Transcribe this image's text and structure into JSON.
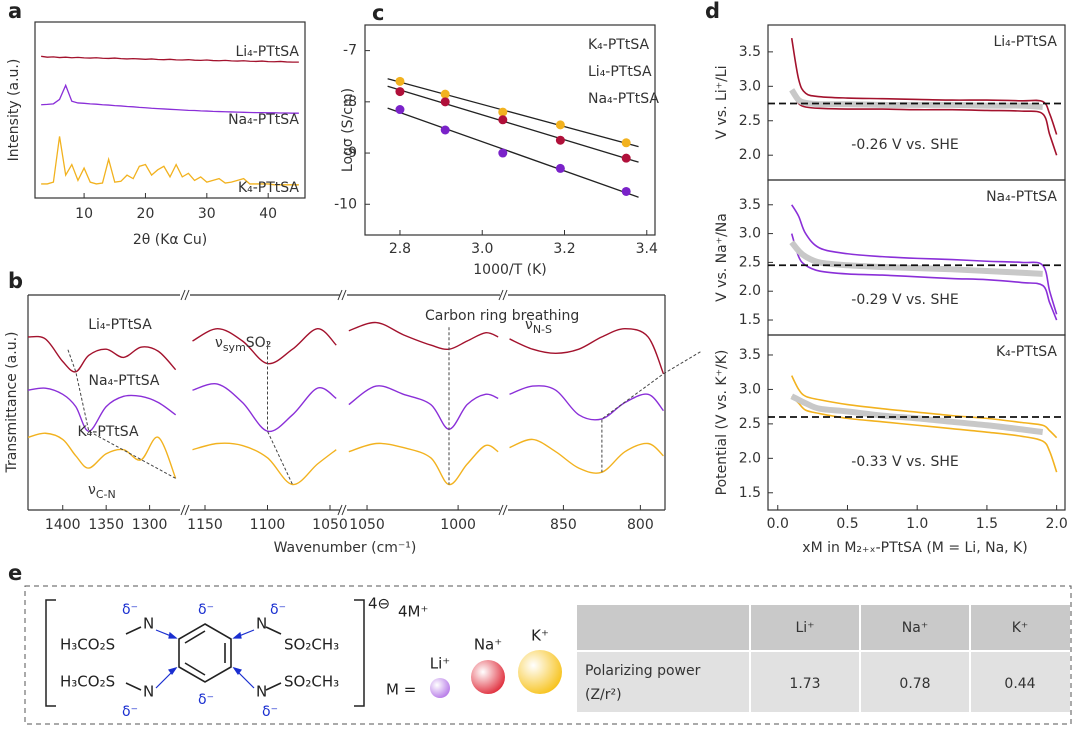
{
  "chart_data": [
    {
      "label": "a",
      "type": "line",
      "ylabel": "Intensity (a.u.)",
      "xlabel": "2θ (Kα Cu)",
      "xlim": [
        2,
        46
      ],
      "xticks": [
        10,
        20,
        30,
        40
      ],
      "ylim": [
        0,
        10
      ],
      "x": [
        3,
        4,
        5,
        6,
        7,
        8,
        9,
        10,
        11,
        12,
        13,
        14,
        15,
        16,
        17,
        18,
        19,
        20,
        21,
        22,
        23,
        24,
        25,
        26,
        27,
        28,
        29,
        30,
        31,
        32,
        33,
        34,
        35,
        36,
        37,
        38,
        39,
        40,
        41,
        42,
        43,
        44,
        45
      ],
      "series": [
        {
          "name": "Li₄-PTtSA",
          "color": "#a3122d",
          "values": [
            8.05,
            8.0,
            8.02,
            7.98,
            8.0,
            7.97,
            7.99,
            7.96,
            7.95,
            7.97,
            7.94,
            7.93,
            7.95,
            7.92,
            7.9,
            7.92,
            7.9,
            7.88,
            7.9,
            7.87,
            7.86,
            7.88,
            7.85,
            7.84,
            7.86,
            7.83,
            7.82,
            7.84,
            7.81,
            7.8,
            7.82,
            7.79,
            7.78,
            7.8,
            7.77,
            7.76,
            7.78,
            7.75,
            7.74,
            7.76,
            7.73,
            7.72,
            7.72
          ]
        },
        {
          "name": "Na₄-PTtSA",
          "color": "#8a2fd8",
          "values": [
            5.3,
            5.32,
            5.35,
            5.6,
            6.4,
            5.5,
            5.4,
            5.38,
            5.35,
            5.33,
            5.3,
            5.28,
            5.25,
            5.23,
            5.2,
            5.18,
            5.15,
            5.13,
            5.1,
            5.08,
            5.06,
            5.04,
            5.02,
            5.0,
            4.98,
            4.97,
            4.95,
            4.94,
            4.92,
            4.91,
            4.9,
            4.89,
            4.88,
            4.87,
            4.86,
            4.85,
            4.85,
            4.84,
            4.84,
            4.83,
            4.83,
            4.82,
            4.82
          ]
        },
        {
          "name": "K₄-PTtSA",
          "color": "#f2b21f",
          "values": [
            0.8,
            0.8,
            0.9,
            3.5,
            1.3,
            1.9,
            1.0,
            1.7,
            0.9,
            0.8,
            0.85,
            2.2,
            0.9,
            0.95,
            1.3,
            1.1,
            1.8,
            1.9,
            1.3,
            1.6,
            1.8,
            1.2,
            1.9,
            1.2,
            1.4,
            1.0,
            1.2,
            0.9,
            1.0,
            1.1,
            0.85,
            0.9,
            1.0,
            1.1,
            0.8,
            0.8,
            0.8,
            0.8,
            0.75,
            0.75,
            0.75,
            0.75,
            0.75
          ]
        }
      ]
    },
    {
      "label": "b",
      "type": "broken-line",
      "ylabel": "Transmittance (a.u.)",
      "xlabel": "Wavenumber (cm⁻¹)",
      "ylim": [
        0,
        10
      ],
      "series_labels": [
        {
          "name": "Li₄-PTtSA",
          "color": "#a3122d"
        },
        {
          "name": "Na₄-PTtSA",
          "color": "#8a2fd8"
        },
        {
          "name": "K₄-PTtSA",
          "color": "#f2b21f"
        }
      ],
      "segments": [
        {
          "xlim": [
            1440,
            1265
          ],
          "xticks": [
            1400,
            1350,
            1300
          ],
          "x": [
            1440,
            1420,
            1400,
            1385,
            1370,
            1350,
            1330,
            1310,
            1290,
            1270
          ],
          "annotation": {
            "symbol": "ν",
            "sub": "C-N"
          },
          "series": [
            {
              "values": [
                8.2,
                8.1,
                7.0,
                6.5,
                7.3,
                7.6,
                7.2,
                7.7,
                7.5,
                6.6
              ]
            },
            {
              "values": [
                5.6,
                5.7,
                5.4,
                4.8,
                3.6,
                4.8,
                5.3,
                5.3,
                5.0,
                4.4
              ]
            },
            {
              "values": [
                3.3,
                3.5,
                3.2,
                2.4,
                1.8,
                2.5,
                2.7,
                2.2,
                3.3,
                1.3
              ]
            }
          ]
        },
        {
          "xlim": [
            1162,
            1042
          ],
          "xticks": [
            1150,
            1100,
            1050
          ],
          "x": [
            1160,
            1140,
            1120,
            1100,
            1080,
            1060,
            1045
          ],
          "annotation": {
            "symbol": "ν",
            "sub": "sym",
            "tail": "SO₂"
          },
          "series": [
            {
              "values": [
                8.0,
                8.6,
                8.0,
                6.9,
                7.6,
                8.6,
                7.8
              ]
            },
            {
              "values": [
                5.6,
                5.9,
                5.0,
                3.6,
                4.4,
                5.7,
                5.2
              ]
            },
            {
              "values": [
                2.7,
                3.0,
                2.9,
                2.3,
                1.0,
                2.0,
                2.7
              ]
            }
          ]
        },
        {
          "xlim": [
            1061,
            977
          ],
          "xticks": [
            1050,
            1000
          ],
          "x": [
            1060,
            1045,
            1030,
            1015,
            1005,
            995,
            985,
            978
          ],
          "annotation": {
            "symbol": "Carbon ring breathing"
          },
          "series": [
            {
              "values": [
                8.5,
                8.9,
                8.3,
                7.8,
                7.6,
                8.0,
                8.4,
                8.2
              ]
            },
            {
              "values": [
                4.9,
                5.8,
                5.4,
                4.9,
                3.7,
                4.9,
                5.4,
                5.2
              ]
            },
            {
              "values": [
                2.6,
                3.0,
                2.8,
                2.3,
                1.0,
                2.0,
                2.9,
                2.6
              ]
            }
          ]
        },
        {
          "xlim": [
            886,
            784
          ],
          "xticks": [
            850,
            800
          ],
          "x": [
            885,
            870,
            855,
            840,
            825,
            810,
            795,
            785
          ],
          "annotation": {
            "symbol": "ν",
            "sub": "N-S"
          },
          "series": [
            {
              "values": [
                8.1,
                7.6,
                7.4,
                7.6,
                8.2,
                8.6,
                8.2,
                6.4
              ]
            },
            {
              "values": [
                5.4,
                5.8,
                5.6,
                4.4,
                4.2,
                5.0,
                5.4,
                4.6
              ]
            },
            {
              "values": [
                2.8,
                3.2,
                2.6,
                1.8,
                1.6,
                2.6,
                3.0,
                2.4
              ]
            }
          ]
        }
      ]
    },
    {
      "label": "c",
      "type": "scatter",
      "xlabel": "1000/T (K)",
      "ylabel": "Logσ (S/cm)",
      "fit": true,
      "xlim": [
        2.715,
        3.42
      ],
      "ylim": [
        -10.6,
        -6.5
      ],
      "xticks": [
        2.8,
        {
          "value": 3,
          "label": "3.0"
        },
        3.2,
        3.4
      ],
      "yticks": [
        -10,
        -9,
        -8,
        -7
      ],
      "x": [
        2.8,
        2.91,
        3.05,
        3.19,
        3.35
      ],
      "series": [
        {
          "name": "K₄-PTtSA",
          "color": "#f2b21f",
          "values": [
            -7.6,
            -7.85,
            -8.2,
            -8.45,
            -8.8
          ]
        },
        {
          "name": "Li₄-PTtSA",
          "color": "#b0103a",
          "values": [
            -7.8,
            -8.0,
            -8.35,
            -8.75,
            -9.1
          ]
        },
        {
          "name": "Na₄-PTtSA",
          "color": "#7a22c9",
          "values": [
            -8.15,
            -8.55,
            -9.0,
            -9.3,
            -9.75
          ]
        }
      ]
    },
    {
      "label": "d",
      "type": "line",
      "xlabel": "xM in M₂₊ₓ-PTtSA (M = Li, Na, K)",
      "xlim": [
        -0.07,
        2.06
      ],
      "xticks": [
        {
          "value": 0,
          "label": "0.0"
        },
        0.5,
        {
          "value": 1,
          "label": "1.0"
        },
        1.5,
        {
          "value": 2,
          "label": "2.0"
        }
      ],
      "x": [
        0.1,
        0.15,
        0.2,
        0.3,
        0.5,
        0.75,
        1.0,
        1.25,
        1.5,
        1.75,
        1.9,
        1.95,
        2.0
      ],
      "panels": [
        {
          "label": "Li₄-PTtSA",
          "ylabel": "V vs. Li⁺/Li",
          "annotation": "-0.26 V vs. SHE",
          "reference": 2.75,
          "ylim": [
            1.64,
            3.89
          ],
          "yticks": [
            {
              "value": 2,
              "label": "2.0"
            },
            2.5,
            {
              "value": 3,
              "label": "3.0"
            },
            3.5
          ],
          "series": [
            {
              "color": "#a3122d",
              "values": [
                3.7,
                3.1,
                2.9,
                2.85,
                2.83,
                2.82,
                2.81,
                2.8,
                2.8,
                2.79,
                2.78,
                2.6,
                2.3
              ]
            },
            {
              "color": "#a3122d",
              "values": [
                2.9,
                2.75,
                2.7,
                2.68,
                2.67,
                2.67,
                2.66,
                2.66,
                2.65,
                2.64,
                2.6,
                2.3,
                2.0
              ]
            },
            {
              "color": "#c8c8c8",
              "values": [
                2.95,
                2.8,
                2.76,
                2.74,
                2.74,
                2.73,
                2.73,
                2.73,
                2.72,
                2.72,
                2.7,
                null,
                null
              ]
            }
          ]
        },
        {
          "label": "Na₄-PTtSA",
          "ylabel": "V vs. Na⁺/Na",
          "annotation": "-0.29 V vs. SHE",
          "reference": 2.45,
          "ylim": [
            1.24,
            3.93
          ],
          "yticks": [
            1.5,
            {
              "value": 2,
              "label": "2.0"
            },
            2.5,
            {
              "value": 3,
              "label": "3.0"
            },
            3.5
          ],
          "series": [
            {
              "color": "#8a2fd8",
              "values": [
                3.5,
                3.3,
                3.0,
                2.75,
                2.65,
                2.6,
                2.57,
                2.55,
                2.52,
                2.5,
                2.45,
                2.0,
                1.6
              ]
            },
            {
              "color": "#8a2fd8",
              "values": [
                3.0,
                2.6,
                2.45,
                2.35,
                2.3,
                2.28,
                2.25,
                2.22,
                2.2,
                2.15,
                2.1,
                1.8,
                1.5
              ]
            },
            {
              "color": "#c8c8c8",
              "values": [
                2.85,
                2.7,
                2.6,
                2.5,
                2.45,
                2.42,
                2.4,
                2.38,
                2.35,
                2.32,
                2.3,
                null,
                null
              ]
            }
          ]
        },
        {
          "label": "K₄-PTtSA",
          "ylabel": "Potential (V vs. K⁺/K)",
          "annotation": "-0.33 V vs. SHE",
          "reference": 2.6,
          "ylim": [
            1.25,
            3.79
          ],
          "yticks": [
            1.5,
            {
              "value": 2,
              "label": "2.0"
            },
            2.5,
            {
              "value": 3,
              "label": "3.0"
            },
            3.5
          ],
          "series": [
            {
              "color": "#f2b21f",
              "values": [
                3.2,
                3.0,
                2.9,
                2.85,
                2.78,
                2.72,
                2.67,
                2.62,
                2.58,
                2.52,
                2.48,
                2.4,
                2.3
              ]
            },
            {
              "color": "#f2b21f",
              "values": [
                2.9,
                2.8,
                2.7,
                2.65,
                2.58,
                2.53,
                2.48,
                2.43,
                2.38,
                2.32,
                2.25,
                2.1,
                1.8
              ]
            },
            {
              "color": "#c8c8c8",
              "values": [
                2.9,
                2.85,
                2.8,
                2.72,
                2.68,
                2.62,
                2.58,
                2.53,
                2.48,
                2.42,
                2.38,
                null,
                null
              ]
            }
          ]
        }
      ]
    }
  ],
  "figure_e": {
    "label": "e",
    "structure": {
      "left_group": [
        "H₃CO₂S",
        "H₃CO₂S"
      ],
      "right_group": [
        "SO₂CH₃",
        "SO₂CH₃"
      ],
      "N": [
        "N",
        "N",
        "N",
        "N"
      ],
      "delta": [
        "δ⁻",
        "δ⁻",
        "δ⁻",
        "δ⁻",
        "δ⁻",
        "δ⁻"
      ],
      "charge": "4⊖",
      "counter_ion": "4M⁺",
      "M_label": "M =",
      "ions": [
        {
          "name": "Li⁺",
          "color": "#b77be8"
        },
        {
          "name": "Na⁺",
          "color": "#e0303e"
        },
        {
          "name": "K⁺",
          "color": "#f7c31e"
        }
      ]
    },
    "table": {
      "columns": [
        "Li⁺",
        "Na⁺",
        "K⁺"
      ],
      "rows": [
        {
          "label": [
            "Polarizing power",
            "(Z/r²)"
          ],
          "values": [
            1.73,
            0.78,
            0.44
          ]
        }
      ]
    }
  }
}
